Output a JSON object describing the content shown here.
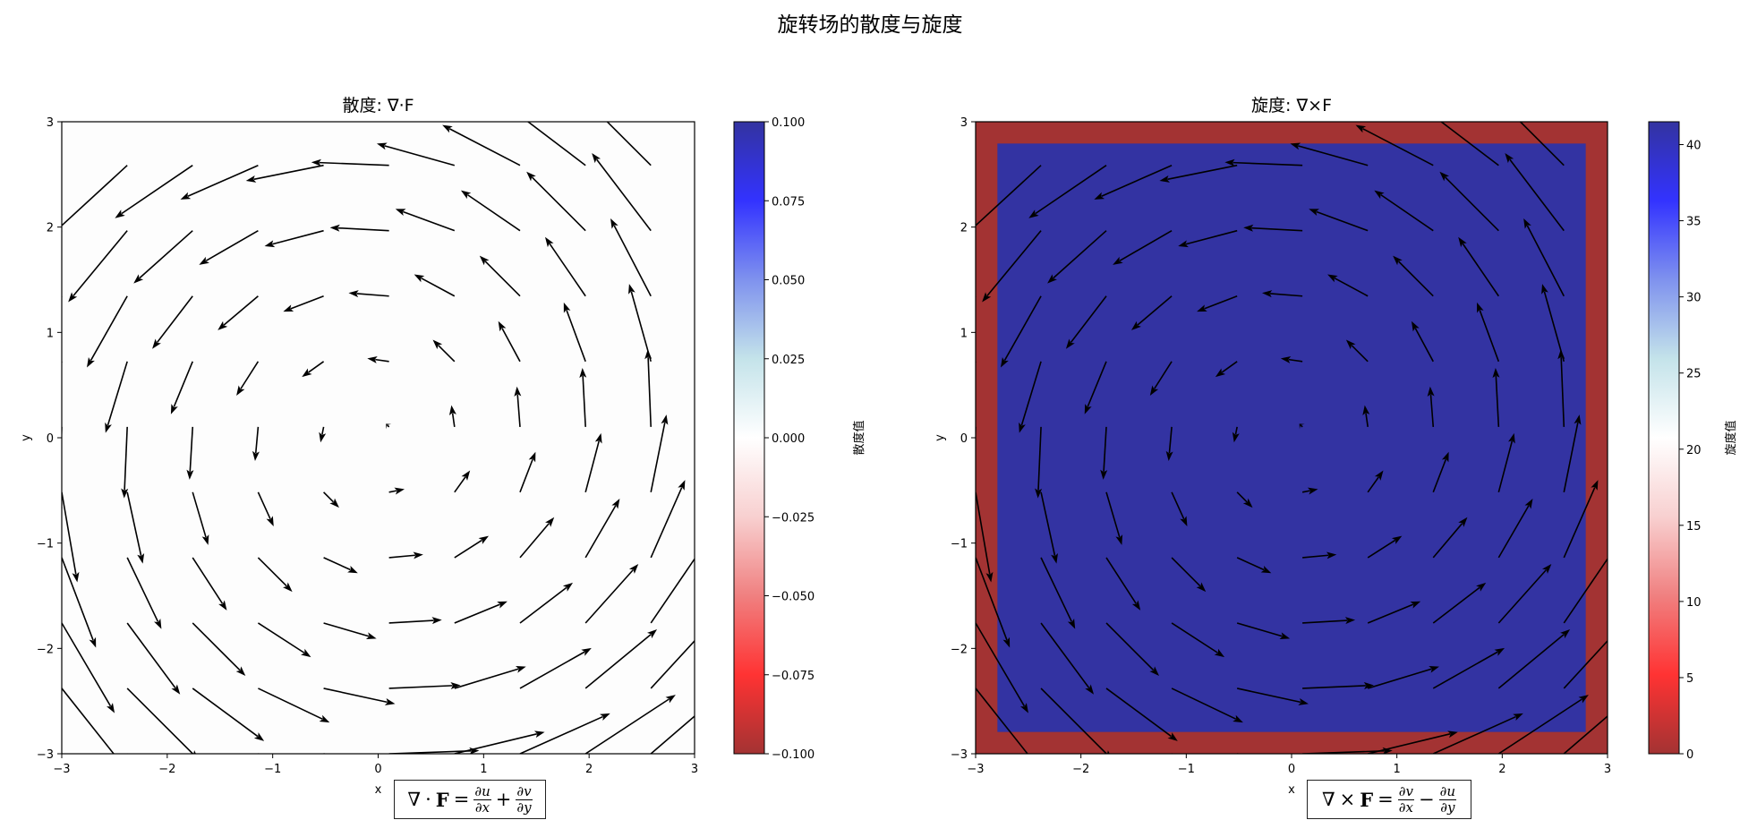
{
  "suptitle": "旋转场的散度与旋度",
  "chart_data": [
    {
      "type": "heatmap",
      "title": "散度: ∇·F",
      "xlabel": "x",
      "ylabel": "y",
      "xlim": [
        -3,
        3
      ],
      "ylim": [
        -3,
        3
      ],
      "xticks": [
        "−3",
        "−2",
        "−1",
        "0",
        "1",
        "2",
        "3"
      ],
      "yticks": [
        "−3",
        "−2",
        "−1",
        "0",
        "1",
        "2",
        "3"
      ],
      "heatmap": {
        "interior_value": 0.0,
        "boundary_value": 0.0,
        "boundary_width": 0.207
      },
      "colorbar": {
        "label": "散度值",
        "range": [
          -0.1,
          0.1
        ],
        "ticks": [
          "−0.100",
          "−0.075",
          "−0.050",
          "−0.025",
          "0.000",
          "0.025",
          "0.050",
          "0.075",
          "0.100"
        ],
        "tick_values": [
          -0.1,
          -0.075,
          -0.05,
          -0.025,
          0,
          0.025,
          0.05,
          0.075,
          0.1
        ]
      },
      "quiver": {
        "grid": [
          -3,
          -2.379,
          -1.759,
          -1.138,
          -0.517,
          0.103,
          0.724,
          1.345,
          1.966,
          2.586
        ],
        "u": "-y",
        "v": "x"
      },
      "formula": {
        "lhs_op": "∇",
        "lhs_dot": "·",
        "lhs_vec": "F",
        "eq": "=",
        "t1_num": "∂u",
        "t1_den": "∂x",
        "op": "+",
        "t2_num": "∂v",
        "t2_den": "∂y"
      }
    },
    {
      "type": "heatmap",
      "title": "旋度: ∇×F",
      "xlabel": "x",
      "ylabel": "y",
      "xlim": [
        -3,
        3
      ],
      "ylim": [
        -3,
        3
      ],
      "xticks": [
        "−3",
        "−2",
        "−1",
        "0",
        "1",
        "2",
        "3"
      ],
      "yticks": [
        "−3",
        "−2",
        "−1",
        "0",
        "1",
        "2",
        "3"
      ],
      "heatmap": {
        "interior_value": 41.4,
        "boundary_value": 0.0,
        "boundary_width": 0.207
      },
      "colorbar": {
        "label": "旋度值",
        "range": [
          0,
          41.5
        ],
        "ticks": [
          "0",
          "5",
          "10",
          "15",
          "20",
          "25",
          "30",
          "35",
          "40"
        ],
        "tick_values": [
          0,
          5,
          10,
          15,
          20,
          25,
          30,
          35,
          40
        ]
      },
      "quiver": {
        "grid": [
          -3,
          -2.379,
          -1.759,
          -1.138,
          -0.517,
          0.103,
          0.724,
          1.345,
          1.966,
          2.586
        ],
        "u": "-y",
        "v": "x"
      },
      "formula": {
        "lhs_op": "∇",
        "lhs_dot": "×",
        "lhs_vec": "F",
        "eq": "=",
        "t1_num": "∂v",
        "t1_den": "∂x",
        "op": "−",
        "t2_num": "∂u",
        "t2_den": "∂y"
      }
    }
  ],
  "colormap": [
    "#a33333",
    "#ff3333",
    "#f08080",
    "#f8d0d0",
    "#ffffff",
    "#c4e3ea",
    "#7f92ee",
    "#3333ff",
    "#3333a0"
  ]
}
